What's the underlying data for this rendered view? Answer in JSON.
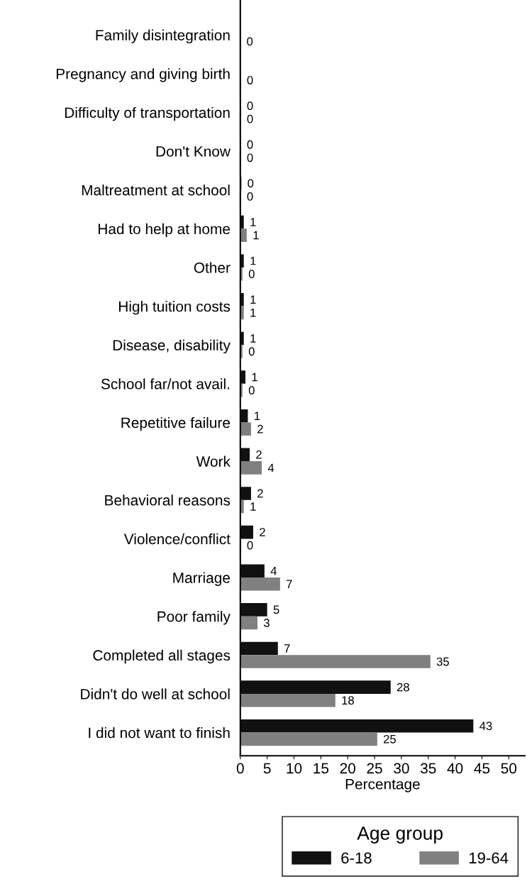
{
  "chart_data": {
    "type": "bar",
    "orientation": "horizontal",
    "xlabel": "Percentage",
    "legend_title": "Age group",
    "legend": "bottom",
    "categories": [
      "Family disintegration",
      "Pregnancy and giving birth",
      "Difficulty of transportation",
      "Don't Know",
      "Maltreatment at school",
      "Had to help at home",
      "Other",
      "High tuition costs",
      "Disease, disability",
      "School far/not avail.",
      "Repetitive failure",
      "Work",
      "Behavioral reasons",
      "Violence/conflict",
      "Marriage",
      "Poor family",
      "Completed all stages",
      "Didn't do well at school",
      "I did not want to finish"
    ],
    "series": [
      {
        "name": "6-18",
        "color": "#111111",
        "values": [
          null,
          null,
          0.1,
          0.1,
          0.2,
          0.65,
          0.65,
          0.65,
          0.65,
          0.95,
          1.4,
          1.75,
          2.0,
          2.4,
          4.5,
          5.0,
          7.0,
          28.0,
          43.4
        ],
        "value_labels": [
          null,
          null,
          "0",
          "0",
          "0",
          "1",
          "1",
          "1",
          "1",
          "1",
          "1",
          "2",
          "2",
          "2",
          "4",
          "5",
          "7",
          "28",
          "43"
        ]
      },
      {
        "name": "19-64",
        "color": "#808080",
        "values": [
          0.05,
          0.1,
          0.1,
          0.1,
          0.1,
          1.2,
          0.4,
          0.65,
          0.4,
          0.4,
          2.0,
          4.0,
          0.65,
          0.1,
          7.4,
          3.2,
          35.4,
          17.7,
          25.5
        ],
        "value_labels": [
          "0",
          "0",
          "0",
          "0",
          "0",
          "1",
          "0",
          "1",
          "0",
          "0",
          "2",
          "4",
          "1",
          "0",
          "7",
          "3",
          "35",
          "18",
          "25"
        ]
      }
    ],
    "xlim": [
      0,
      53
    ],
    "xticks": [
      0,
      5,
      10,
      15,
      20,
      25,
      30,
      35,
      40,
      45,
      50
    ],
    "grid": false
  }
}
